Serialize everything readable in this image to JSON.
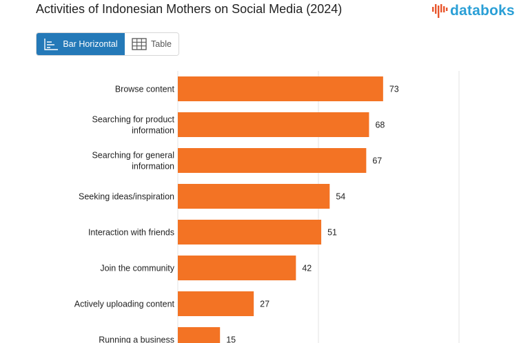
{
  "header": {
    "title": "Activities of Indonesian Mothers on Social Media (2024)",
    "brand": "databoks"
  },
  "view_toggle": {
    "options": [
      {
        "label": "Bar Horizontal",
        "icon": "bar-chart-icon",
        "active": true
      },
      {
        "label": "Table",
        "icon": "table-icon",
        "active": false
      }
    ]
  },
  "colors": {
    "bar": "#f37324",
    "accent": "#2479b8",
    "brand": "#2a9fd6",
    "grid": "#e3e3e3"
  },
  "chart_data": {
    "type": "bar",
    "orientation": "horizontal",
    "title": "Activities of Indonesian Mothers on Social Media (2024)",
    "categories": [
      "Browse content",
      "Searching for product information",
      "Searching for general information",
      "Seeking ideas/inspiration",
      "Interaction with friends",
      "Join the community",
      "Actively uploading content",
      "Running a business"
    ],
    "values": [
      73,
      68,
      67,
      54,
      51,
      42,
      27,
      15
    ],
    "xlim": [
      0,
      100
    ],
    "grid": true,
    "legend": false
  }
}
